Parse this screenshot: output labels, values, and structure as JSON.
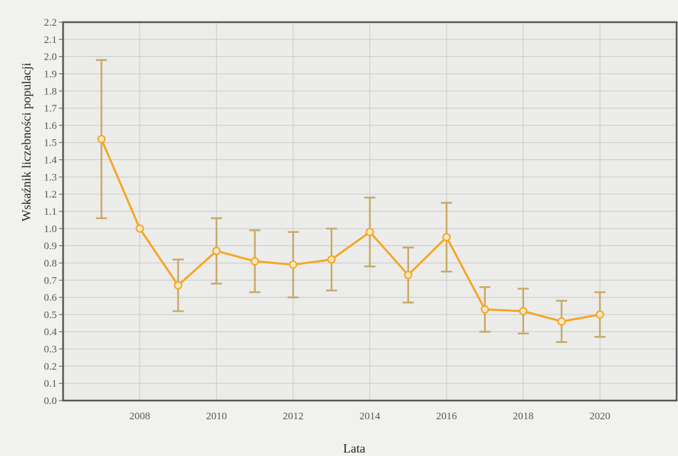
{
  "chart_data": {
    "type": "line",
    "title": "",
    "xlabel": "Lata",
    "ylabel": "Wskaźnik liczebności populacji",
    "xlim": [
      2006,
      2022
    ],
    "ylim": [
      0,
      2.2
    ],
    "x_ticks": [
      2008,
      2010,
      2012,
      2014,
      2016,
      2018,
      2020
    ],
    "y_ticks": [
      "0.0",
      "0.1",
      "0.2",
      "0.3",
      "0.4",
      "0.5",
      "0.6",
      "0.7",
      "0.8",
      "0.9",
      "1.0",
      "1.1",
      "1.2",
      "1.3",
      "1.4",
      "1.5",
      "1.6",
      "1.7",
      "1.8",
      "1.9",
      "2.0",
      "2.1",
      "2.2"
    ],
    "grid": true,
    "legend": "none",
    "series": [
      {
        "x": [
          2007,
          2008,
          2009,
          2010,
          2011,
          2012,
          2013,
          2014,
          2015,
          2016,
          2017,
          2018,
          2019,
          2020
        ],
        "values": [
          1.52,
          1.0,
          0.67,
          0.87,
          0.81,
          0.79,
          0.82,
          0.98,
          0.73,
          0.95,
          0.53,
          0.52,
          0.46,
          0.5
        ],
        "error_low": [
          1.06,
          1.0,
          0.52,
          0.68,
          0.63,
          0.6,
          0.64,
          0.78,
          0.57,
          0.75,
          0.4,
          0.39,
          0.34,
          0.37
        ],
        "error_high": [
          1.98,
          1.0,
          0.82,
          1.06,
          0.99,
          0.98,
          1.0,
          1.18,
          0.89,
          1.15,
          0.66,
          0.65,
          0.58,
          0.63
        ]
      }
    ],
    "colors": {
      "line": "#f5a623",
      "marker_fill": "#f7e9c4",
      "error_bar": "#c8a865",
      "grid": "#c8c8c8",
      "plot_border": "#555555",
      "plot_background": "#ececea"
    }
  }
}
